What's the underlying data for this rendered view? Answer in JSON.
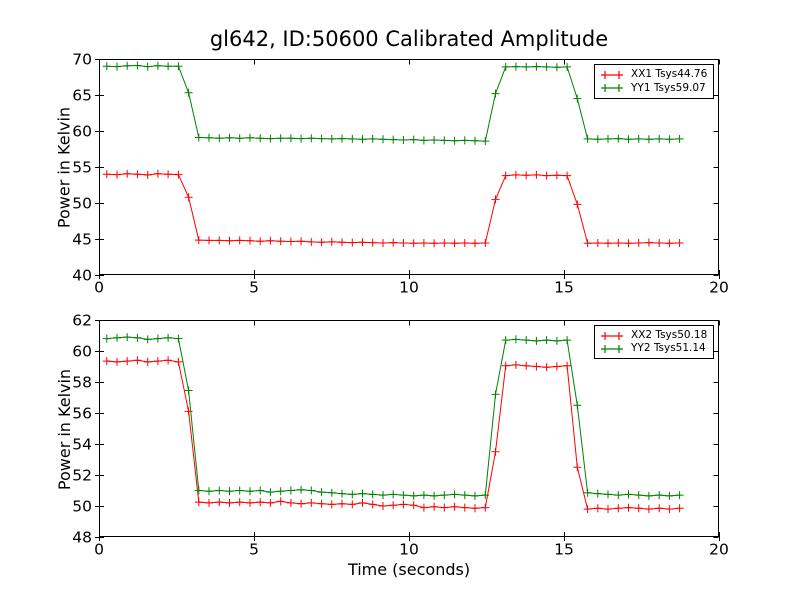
{
  "figure": {
    "background": "#ffffff",
    "text_color": "#000000"
  },
  "chart_data": [
    {
      "type": "line",
      "title": "gl642, ID:50600 Calibrated Amplitude",
      "xlabel": "",
      "ylabel": "Power in Kelvin",
      "xlim": [
        0,
        20
      ],
      "ylim": [
        40,
        70
      ],
      "xticks": [
        0,
        5,
        10,
        15,
        20
      ],
      "yticks": [
        40,
        45,
        50,
        55,
        60,
        65,
        70
      ],
      "grid": false,
      "legend_position": "upper right",
      "x": [
        0.25,
        0.58,
        0.91,
        1.24,
        1.57,
        1.9,
        2.23,
        2.56,
        2.89,
        3.22,
        3.55,
        3.88,
        4.21,
        4.54,
        4.87,
        5.2,
        5.53,
        5.86,
        6.19,
        6.52,
        6.85,
        7.18,
        7.51,
        7.84,
        8.17,
        8.5,
        8.83,
        9.16,
        9.49,
        9.82,
        10.15,
        10.48,
        10.81,
        11.14,
        11.47,
        11.8,
        12.13,
        12.46,
        12.79,
        13.12,
        13.45,
        13.78,
        14.11,
        14.44,
        14.77,
        15.1,
        15.43,
        15.76,
        16.09,
        16.42,
        16.75,
        17.08,
        17.41,
        17.74,
        18.07,
        18.4,
        18.73
      ],
      "series": [
        {
          "name": "XX1 Tsys44.76",
          "color": "#ff0000",
          "marker": "+",
          "values": [
            54.0,
            53.95,
            54.05,
            54.0,
            53.9,
            54.05,
            54.0,
            53.95,
            50.8,
            44.85,
            44.8,
            44.8,
            44.75,
            44.8,
            44.75,
            44.7,
            44.75,
            44.7,
            44.65,
            44.7,
            44.6,
            44.55,
            44.6,
            44.55,
            44.5,
            44.55,
            44.5,
            44.45,
            44.5,
            44.45,
            44.4,
            44.45,
            44.4,
            44.45,
            44.4,
            44.45,
            44.4,
            44.45,
            50.5,
            53.8,
            53.9,
            53.85,
            53.9,
            53.8,
            53.85,
            53.8,
            49.8,
            44.4,
            44.45,
            44.4,
            44.45,
            44.4,
            44.45,
            44.5,
            44.45,
            44.4,
            44.45
          ]
        },
        {
          "name": "YY1 Tsys59.07",
          "color": "#008000",
          "marker": "+",
          "values": [
            69.0,
            68.95,
            69.05,
            69.1,
            68.95,
            69.05,
            69.0,
            69.0,
            65.3,
            59.1,
            59.05,
            59.0,
            59.05,
            59.0,
            59.05,
            59.0,
            58.95,
            59.0,
            59.0,
            58.95,
            59.0,
            58.95,
            58.9,
            58.95,
            58.9,
            58.85,
            58.9,
            58.85,
            58.8,
            58.75,
            58.8,
            58.7,
            58.75,
            58.7,
            58.65,
            58.7,
            58.65,
            58.6,
            65.2,
            68.9,
            68.95,
            68.9,
            68.95,
            68.9,
            68.85,
            68.9,
            64.5,
            58.9,
            58.85,
            58.9,
            58.95,
            58.85,
            58.9,
            58.85,
            58.9,
            58.85,
            58.9
          ]
        }
      ]
    },
    {
      "type": "line",
      "title": "",
      "xlabel": "Time (seconds)",
      "ylabel": "Power in Kelvin",
      "xlim": [
        0,
        20
      ],
      "ylim": [
        48,
        62
      ],
      "xticks": [
        0,
        5,
        10,
        15,
        20
      ],
      "yticks": [
        48,
        50,
        52,
        54,
        56,
        58,
        60,
        62
      ],
      "grid": false,
      "legend_position": "upper right",
      "x": [
        0.25,
        0.58,
        0.91,
        1.24,
        1.57,
        1.9,
        2.23,
        2.56,
        2.89,
        3.22,
        3.55,
        3.88,
        4.21,
        4.54,
        4.87,
        5.2,
        5.53,
        5.86,
        6.19,
        6.52,
        6.85,
        7.18,
        7.51,
        7.84,
        8.17,
        8.5,
        8.83,
        9.16,
        9.49,
        9.82,
        10.15,
        10.48,
        10.81,
        11.14,
        11.47,
        11.8,
        12.13,
        12.46,
        12.79,
        13.12,
        13.45,
        13.78,
        14.11,
        14.44,
        14.77,
        15.1,
        15.43,
        15.76,
        16.09,
        16.42,
        16.75,
        17.08,
        17.41,
        17.74,
        18.07,
        18.4,
        18.73
      ],
      "series": [
        {
          "name": "XX2 Tsys50.18",
          "color": "#ff0000",
          "marker": "+",
          "values": [
            59.35,
            59.3,
            59.35,
            59.4,
            59.3,
            59.35,
            59.4,
            59.3,
            56.1,
            50.25,
            50.2,
            50.25,
            50.2,
            50.25,
            50.2,
            50.25,
            50.2,
            50.3,
            50.2,
            50.15,
            50.2,
            50.15,
            50.1,
            50.15,
            50.1,
            50.2,
            50.1,
            50.0,
            50.05,
            50.1,
            50.05,
            49.9,
            49.95,
            49.9,
            49.95,
            49.9,
            49.85,
            49.9,
            53.5,
            59.05,
            59.1,
            59.05,
            59.0,
            58.95,
            59.0,
            59.05,
            52.5,
            49.8,
            49.85,
            49.8,
            49.85,
            49.9,
            49.85,
            49.8,
            49.85,
            49.8,
            49.85
          ]
        },
        {
          "name": "YY2 Tsys51.14",
          "color": "#008000",
          "marker": "+",
          "values": [
            60.8,
            60.85,
            60.9,
            60.85,
            60.75,
            60.8,
            60.85,
            60.8,
            57.45,
            51.0,
            50.95,
            51.0,
            50.95,
            51.0,
            50.95,
            51.0,
            50.9,
            50.95,
            51.0,
            51.05,
            51.0,
            50.9,
            50.85,
            50.8,
            50.75,
            50.8,
            50.75,
            50.7,
            50.75,
            50.7,
            50.65,
            50.7,
            50.65,
            50.7,
            50.75,
            50.7,
            50.65,
            50.7,
            57.2,
            60.7,
            60.75,
            60.7,
            60.65,
            60.7,
            60.65,
            60.7,
            56.5,
            50.85,
            50.8,
            50.75,
            50.7,
            50.75,
            50.7,
            50.65,
            50.7,
            50.65,
            50.7
          ]
        }
      ]
    }
  ]
}
